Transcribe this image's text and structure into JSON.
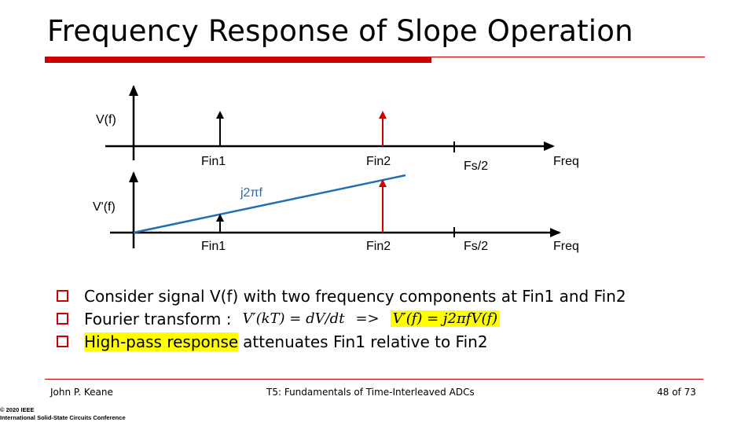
{
  "title": "Frequency Response of Slope Operation",
  "top_plot": {
    "ylabel": "V(f)",
    "xlabel": "Freq",
    "tick_labels": [
      "Fin1",
      "Fin2",
      "Fs/2"
    ]
  },
  "bottom_plot": {
    "ylabel": "V'(f)",
    "xlabel": "Freq",
    "line_label": "j2πf",
    "tick_labels": [
      "Fin1",
      "Fin2",
      "Fs/2"
    ]
  },
  "colors": {
    "accent_red": "#cc0000",
    "slope_blue": "#1f6fb5",
    "highlight": "#ffff00"
  },
  "bullets": {
    "b1": "Consider signal V(f) with two frequency components at Fin1 and Fin2",
    "b2_prefix": "Fourier transform :",
    "b2_equation": "V′(kT) = dV/dt",
    "b2_arrow": "=>",
    "b2_result": "V′(f) = j2πfV(f)",
    "b3_highlight": "High-pass response",
    "b3_rest": "attenuates Fin1 relative to Fin2"
  },
  "footer": {
    "author": "John P. Keane",
    "course": "T5: Fundamentals of Time-Interleaved ADCs",
    "page": "48 of 73",
    "copyright_line1": "© 2020 IEEE",
    "copyright_line2": "International Solid-State Circuits Conference"
  }
}
